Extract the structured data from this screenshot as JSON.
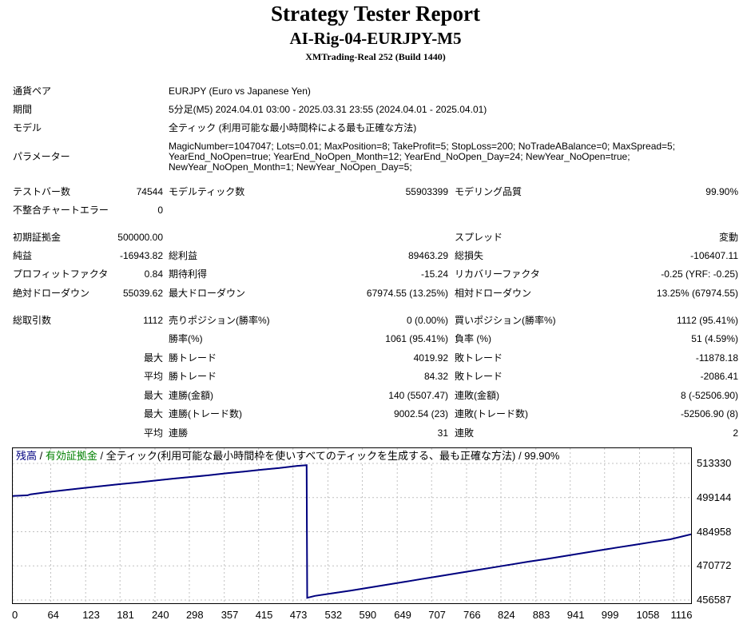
{
  "report": {
    "title": "Strategy Tester Report",
    "subtitle": "AI-Rig-04-EURJPY-M5",
    "server": "XMTrading-Real 252 (Build 1440)"
  },
  "info": {
    "symbol_label": "通貨ペア",
    "symbol_value": "EURJPY (Euro vs Japanese Yen)",
    "period_label": "期間",
    "period_value": "5分足(M5) 2024.04.01 03:00 - 2025.03.31 23:55 (2024.04.01 - 2025.04.01)",
    "model_label": "モデル",
    "model_value": "全ティック (利用可能な最小時間枠による最も正確な方法)",
    "params_label": "パラメーター",
    "params_lines": [
      "MagicNumber=1047047; Lots=0.01; MaxPosition=8; TakeProfit=5; StopLoss=200; NoTradeABalance=0; MaxSpread=5;",
      "YearEnd_NoOpen=true; YearEnd_NoOpen_Month=12; YearEnd_NoOpen_Day=24; NewYear_NoOpen=true;",
      "NewYear_NoOpen_Month=1; NewYear_NoOpen_Day=5;"
    ]
  },
  "stats": {
    "bars_label": "テストバー数",
    "bars_value": "74544",
    "ticks_label": "モデルティック数",
    "ticks_value": "55903399",
    "quality_label": "モデリング品質",
    "quality_value": "99.90%",
    "mismatch_label": "不整合チャートエラー",
    "mismatch_value": "0",
    "deposit_label": "初期証拠金",
    "deposit_value": "500000.00",
    "spread_label": "スプレッド",
    "spread_value": "変動",
    "net_label": "純益",
    "net_value": "-16943.82",
    "gross_profit_label": "総利益",
    "gross_profit_value": "89463.29",
    "gross_loss_label": "総損失",
    "gross_loss_value": "-106407.11",
    "pf_label": "プロフィットファクタ",
    "pf_value": "0.84",
    "expected_label": "期待利得",
    "expected_value": "-15.24",
    "recovery_label": "リカバリーファクタ",
    "recovery_value": "-0.25 (YRF: -0.25)",
    "abs_dd_label": "絶対ドローダウン",
    "abs_dd_value": "55039.62",
    "max_dd_label": "最大ドローダウン",
    "max_dd_value": "67974.55 (13.25%)",
    "rel_dd_label": "相対ドローダウン",
    "rel_dd_value": "13.25% (67974.55)",
    "trades_label": "総取引数",
    "trades_value": "1112",
    "short_label": "売りポジション(勝率%)",
    "short_value": "0 (0.00%)",
    "long_label": "買いポジション(勝率%)",
    "long_value": "1112 (95.41%)",
    "win_rate_label": "勝率(%)",
    "win_rate_value": "1061 (95.41%)",
    "loss_rate_label": "負率 (%)",
    "loss_rate_value": "51 (4.59%)",
    "max_prefix": "最大",
    "avg_prefix": "平均",
    "max_win_label": "勝トレード",
    "max_win_value": "4019.92",
    "max_loss_label": "敗トレード",
    "max_loss_value": "-11878.18",
    "avg_win_label": "勝トレード",
    "avg_win_value": "84.32",
    "avg_loss_label": "敗トレード",
    "avg_loss_value": "-2086.41",
    "max_cons_win_amt_label": "連勝(金額)",
    "max_cons_win_amt_value": "140 (5507.47)",
    "max_cons_loss_amt_label": "連敗(金額)",
    "max_cons_loss_amt_value": "8 (-52506.90)",
    "max_cons_win_cnt_label": "連勝(トレード数)",
    "max_cons_win_cnt_value": "9002.54 (23)",
    "max_cons_loss_cnt_label": "連敗(トレード数)",
    "max_cons_loss_cnt_value": "-52506.90 (8)",
    "avg_cons_win_label": "連勝",
    "avg_cons_win_value": "31",
    "avg_cons_loss_label": "連敗",
    "avg_cons_loss_value": "2"
  },
  "chart_legend": {
    "balance": "残高",
    "sep1": " / ",
    "equity": "有効証拠金",
    "rest": " / 全ティック(利用可能な最小時間枠を使いすべてのティックを生成する、最も正確な方法) / 99.90%"
  },
  "colors": {
    "balance": "#000080",
    "equity": "#008000",
    "grid": "#c0c0c0"
  },
  "chart_data": {
    "type": "line",
    "xlabel": "",
    "ylabel": "",
    "x_ticks": [
      "0",
      "64",
      "123",
      "181",
      "240",
      "298",
      "357",
      "415",
      "473",
      "532",
      "590",
      "649",
      "707",
      "766",
      "824",
      "883",
      "941",
      "999",
      "1058",
      "1116"
    ],
    "y_ticks": [
      "513330",
      "499144",
      "484958",
      "470772",
      "456587"
    ],
    "ylim": [
      456587,
      513330
    ],
    "xlim": [
      0,
      1145
    ],
    "grid": true,
    "series": [
      {
        "name": "残高",
        "x": [
          0,
          25,
          30,
          60,
          90,
          120,
          150,
          180,
          210,
          240,
          270,
          300,
          330,
          360,
          390,
          420,
          450,
          480,
          496,
          497,
          510,
          540,
          570,
          600,
          630,
          660,
          690,
          720,
          750,
          780,
          810,
          840,
          870,
          900,
          930,
          960,
          990,
          1020,
          1050,
          1080,
          1110,
          1145
        ],
        "y": [
          499800,
          500100,
          500500,
          501500,
          502300,
          503100,
          503900,
          504700,
          505400,
          506200,
          507000,
          507700,
          508400,
          509200,
          509900,
          510700,
          511400,
          512300,
          512600,
          457500,
          458300,
          459400,
          460500,
          461700,
          462900,
          464100,
          465300,
          466500,
          467700,
          468900,
          470100,
          471300,
          472500,
          473600,
          474800,
          476000,
          477200,
          478400,
          479500,
          480700,
          481800,
          483900
        ]
      },
      {
        "name": "有効証拠金",
        "x": [
          0,
          25,
          30,
          60,
          90,
          120,
          150,
          180,
          210,
          240,
          270,
          300,
          330,
          360,
          390,
          420,
          450,
          480,
          496,
          497,
          510,
          540,
          570,
          600,
          630,
          660,
          690,
          720,
          750,
          780,
          810,
          840,
          870,
          900,
          930,
          960,
          990,
          1020,
          1050,
          1080,
          1110,
          1145
        ],
        "y": [
          499800,
          500100,
          500500,
          501500,
          502300,
          503100,
          503900,
          504700,
          505400,
          506200,
          507000,
          507700,
          508400,
          509200,
          509900,
          510700,
          511400,
          512300,
          512600,
          457500,
          458300,
          459400,
          460500,
          461700,
          462900,
          464100,
          465300,
          466500,
          467700,
          468900,
          470100,
          471300,
          472500,
          473600,
          474800,
          476000,
          477200,
          478400,
          479500,
          480700,
          481800,
          483900
        ]
      }
    ]
  }
}
